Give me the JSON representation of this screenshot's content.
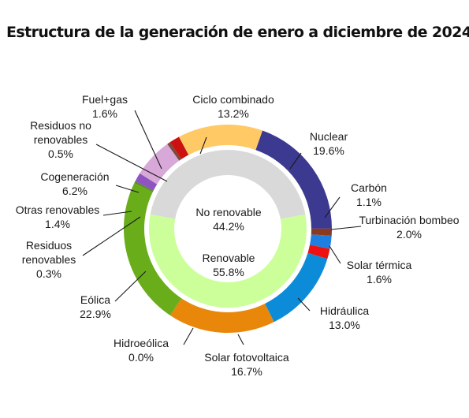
{
  "chart_data": {
    "type": "pie",
    "title": "Estructura de la generación de enero a diciembre de 2024",
    "inner_ring": [
      {
        "name": "No renovable",
        "value": 44.2,
        "label": "No renovable",
        "value_label": "44.2%",
        "color": "#d9d9d9"
      },
      {
        "name": "Renovable",
        "value": 55.8,
        "label": "Renovable",
        "value_label": "55.8%",
        "color": "#ccff99"
      }
    ],
    "outer_ring": [
      {
        "name": "Nuclear",
        "value": 19.6,
        "label_lines": [
          "Nuclear",
          "19.6%"
        ],
        "color": "#3c3990"
      },
      {
        "name": "Carbón",
        "value": 1.1,
        "label_lines": [
          "Carbón",
          "1.1%"
        ],
        "color": "#8a3a1e"
      },
      {
        "name": "Turbinación bombeo",
        "value": 2.0,
        "label_lines": [
          "Turbinación bombeo",
          "2.0%"
        ],
        "color": "#1f7fe0"
      },
      {
        "name": "Solar térmica",
        "value": 1.6,
        "label_lines": [
          "Solar térmica",
          "1.6%"
        ],
        "color": "#ee1111"
      },
      {
        "name": "Hidráulica",
        "value": 13.0,
        "label_lines": [
          "Hidráulica",
          "13.0%"
        ],
        "color": "#0c8cd8"
      },
      {
        "name": "Solar fotovoltaica",
        "value": 16.7,
        "label_lines": [
          "Solar fotovoltaica",
          "16.7%"
        ],
        "color": "#e8870a"
      },
      {
        "name": "Hidroeólica",
        "value": 0.0,
        "label_lines": [
          "Hidroeólica",
          "0.0%"
        ],
        "color": "#4a8a2a"
      },
      {
        "name": "Eólica",
        "value": 22.9,
        "label_lines": [
          "Eólica",
          "22.9%"
        ],
        "color": "#6aad1a"
      },
      {
        "name": "Residuos renovables",
        "value": 0.3,
        "label_lines": [
          "Residuos",
          "renovables",
          "0.3%"
        ],
        "color": "#5a8a2a"
      },
      {
        "name": "Otras renovables",
        "value": 1.4,
        "label_lines": [
          "Otras renovables",
          "1.4%"
        ],
        "color": "#8e55c0"
      },
      {
        "name": "Cogeneración",
        "value": 6.2,
        "label_lines": [
          "Cogeneración",
          "6.2%"
        ],
        "color": "#d8a8d8"
      },
      {
        "name": "Residuos no renovables",
        "value": 0.5,
        "label_lines": [
          "Residuos no",
          "renovables",
          "0.5%"
        ],
        "color": "#7a4a3a"
      },
      {
        "name": "Fuel+gas",
        "value": 1.6,
        "label_lines": [
          "Fuel+gas",
          "1.6%"
        ],
        "color": "#cc1111"
      },
      {
        "name": "Ciclo combinado",
        "value": 13.2,
        "label_lines": [
          "Ciclo combinado",
          "13.2%"
        ],
        "color": "#ffc966"
      }
    ]
  }
}
